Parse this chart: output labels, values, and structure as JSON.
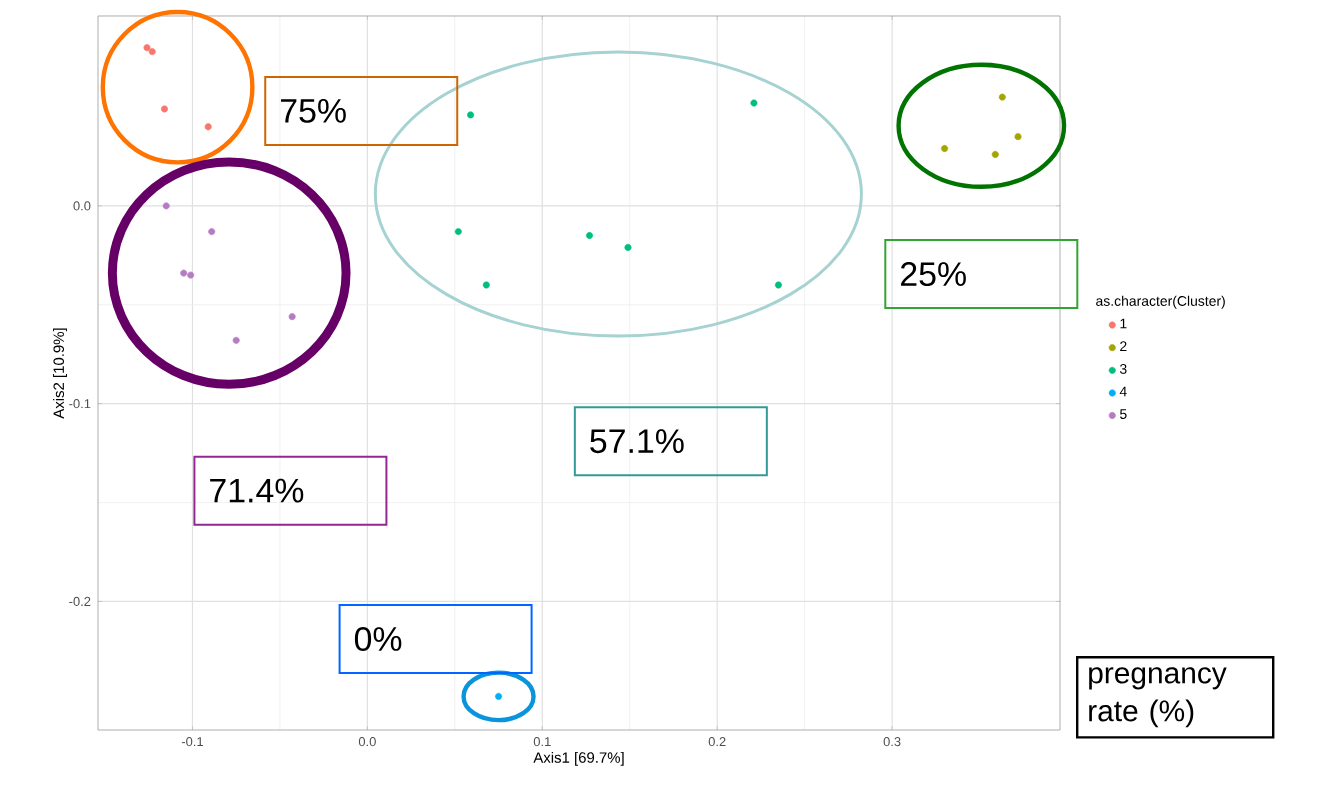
{
  "chart_data": {
    "type": "scatter",
    "xlabel": "Axis1 [69.7%]",
    "ylabel": "Axis2 [10.9%]",
    "legend_title": "as.character(Cluster)",
    "legend": "right",
    "grid": true,
    "xlim": [
      -0.154,
      0.396
    ],
    "ylim": [
      -0.265,
      0.096
    ],
    "xticks": [
      {
        "value": -0.1,
        "label": "-0.1"
      },
      {
        "value": 0,
        "label": "0.0"
      },
      {
        "value": 0.1,
        "label": "0.1"
      },
      {
        "value": 0.2,
        "label": "0.2"
      },
      {
        "value": 0.3,
        "label": "0.3"
      }
    ],
    "yticks": [
      {
        "value": -0.2,
        "label": "-0.2"
      },
      {
        "value": -0.1,
        "label": "-0.1"
      },
      {
        "value": 0,
        "label": "0.0"
      }
    ],
    "series": [
      {
        "name": "1",
        "color": "#f8766d",
        "x": [
          -0.126,
          -0.123,
          -0.116,
          -0.091
        ],
        "values": [
          0.08,
          0.078,
          0.049,
          0.04
        ]
      },
      {
        "name": "2",
        "color": "#a3a500",
        "x": [
          0.363,
          0.372,
          0.33,
          0.359
        ],
        "values": [
          0.055,
          0.035,
          0.029,
          0.026
        ]
      },
      {
        "name": "3",
        "color": "#00bf7d",
        "x": [
          0.059,
          0.221,
          0.052,
          0.127,
          0.149,
          0.068,
          0.235
        ],
        "values": [
          0.046,
          0.052,
          -0.013,
          -0.015,
          -0.021,
          -0.04,
          -0.04
        ]
      },
      {
        "name": "4",
        "color": "#00b0f6",
        "x": [
          0.075
        ],
        "values": [
          -0.248
        ]
      },
      {
        "name": "5",
        "color": "#b57cc4",
        "x": [
          -0.115,
          -0.089,
          -0.105,
          -0.101,
          -0.043,
          -0.075
        ],
        "values": [
          0.0,
          -0.013,
          -0.034,
          -0.035,
          -0.056,
          -0.068
        ]
      }
    ],
    "annotations": [
      "75%",
      "25%",
      "57.1%",
      "0%",
      "71.4%",
      "pregnancy rate (%)"
    ]
  }
}
